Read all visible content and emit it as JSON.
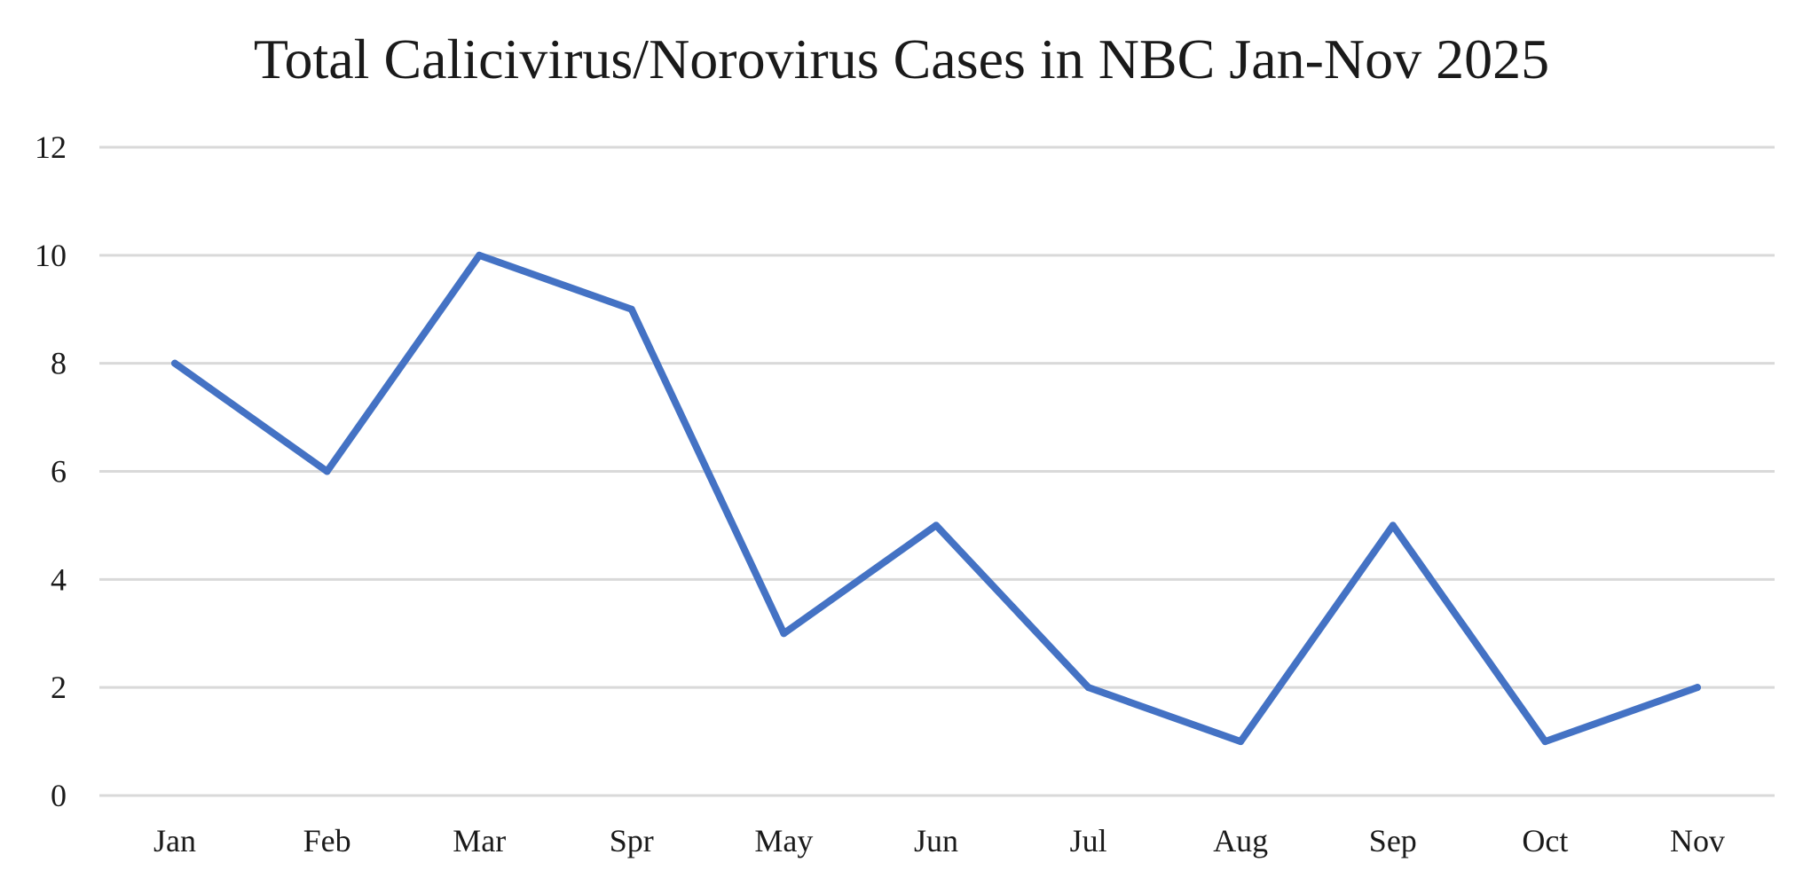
{
  "chart_data": {
    "type": "line",
    "title": "Total Calicivirus/Norovirus Cases in NBC Jan-Nov 2025",
    "xlabel": "",
    "ylabel": "",
    "categories": [
      "Jan",
      "Feb",
      "Mar",
      "Spr",
      "May",
      "Jun",
      "Jul",
      "Aug",
      "Sep",
      "Oct",
      "Nov"
    ],
    "series": [
      {
        "name": "Cases",
        "values": [
          8,
          6,
          10,
          9,
          3,
          5,
          2,
          1,
          5,
          1,
          2
        ],
        "color": "#4472C4"
      }
    ],
    "ylim": [
      0,
      12
    ],
    "yticks": [
      "0",
      "2",
      "4",
      "6",
      "8",
      "10",
      "12"
    ],
    "grid": true,
    "gridColor": "#d9d9d9"
  }
}
